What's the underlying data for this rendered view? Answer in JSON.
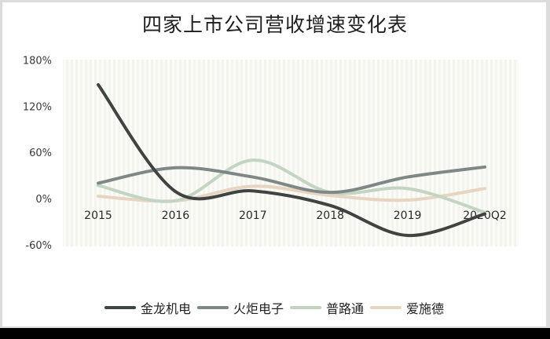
{
  "title": "四家上市公司营收增速变化表",
  "chart_data": {
    "type": "line",
    "title": "四家上市公司营收增速变化表",
    "xlabel": "",
    "ylabel": "",
    "categories": [
      "2015",
      "2016",
      "2017",
      "2018",
      "2019",
      "2020Q2"
    ],
    "y_ticks": [
      "180%",
      "120%",
      "60%",
      "0%",
      "-60%"
    ],
    "ylim": [
      -60,
      180
    ],
    "grid": false,
    "smooth": true,
    "legend_position": "bottom",
    "series": [
      {
        "name": "金龙机电",
        "color": "#3f4442",
        "values": [
          148,
          9,
          10,
          -9,
          -48,
          -20
        ]
      },
      {
        "name": "火炬电子",
        "color": "#7f8886",
        "values": [
          20,
          40,
          28,
          8,
          28,
          41
        ]
      },
      {
        "name": "普路通",
        "color": "#c3d4c2",
        "values": [
          17,
          -3,
          50,
          8,
          13,
          -18
        ]
      },
      {
        "name": "爱施德",
        "color": "#e6d5c0",
        "values": [
          3,
          -3,
          16,
          4,
          -2,
          13
        ]
      }
    ]
  },
  "legend": [
    {
      "label": "金龙机电",
      "color": "#3f4442"
    },
    {
      "label": "火炬电子",
      "color": "#7f8886"
    },
    {
      "label": "普路通",
      "color": "#c3d4c2"
    },
    {
      "label": "爱施德",
      "color": "#e6d5c0"
    }
  ]
}
